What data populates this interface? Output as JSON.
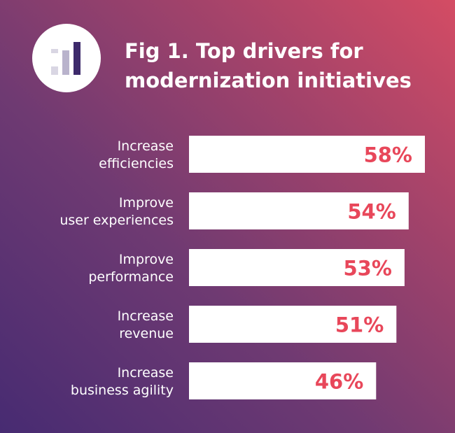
{
  "title_lines": [
    "Fig 1. Top drivers for",
    "modernization initiatives"
  ],
  "icon": "bar-chart-icon",
  "colors": {
    "bar": "#ffffff",
    "value_text": "#e8475a",
    "label_text": "#ffffff",
    "gradient_start": "#472b72",
    "gradient_end": "#d44c64"
  },
  "chart_data": {
    "type": "bar",
    "orientation": "horizontal",
    "title": "Fig 1. Top drivers for modernization initiatives",
    "categories": [
      [
        "Increase",
        "efficiencies"
      ],
      [
        "Improve",
        "user experiences"
      ],
      [
        "Improve",
        "performance"
      ],
      [
        "Increase",
        "revenue"
      ],
      [
        "Increase",
        "business agility"
      ]
    ],
    "values": [
      58,
      54,
      53,
      51,
      46
    ],
    "value_labels": [
      "58%",
      "54%",
      "53%",
      "51%",
      "46%"
    ],
    "unit": "%",
    "xlim": [
      0,
      58
    ],
    "grid": false,
    "legend": "none"
  }
}
